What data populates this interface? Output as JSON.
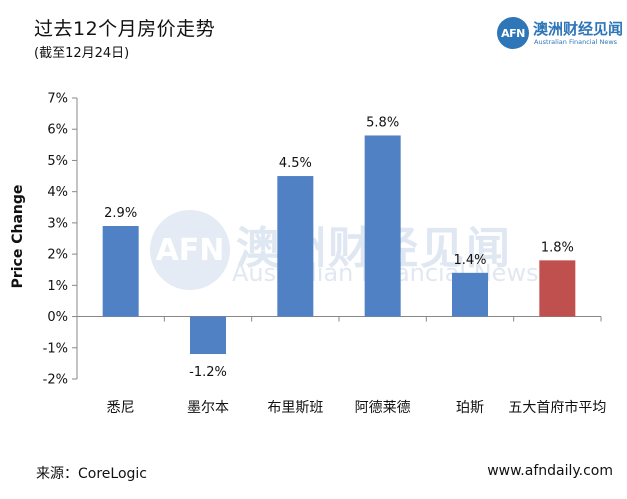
{
  "header": {
    "title": "过去12个月房价走势",
    "subtitle": "(截至12月24日)"
  },
  "logo": {
    "mark": "AFN",
    "name_cn": "澳洲财经见闻",
    "name_en": "Australian Financial News"
  },
  "watermark": {
    "mark": "AFN",
    "name_cn": "澳洲财经见闻",
    "name_en": "Australian Financial News"
  },
  "footer": {
    "source": "来源：CoreLogic",
    "website": "www.afndaily.com"
  },
  "colors": {
    "bar_default": "#4f81c4",
    "bar_highlight": "#c0504d"
  },
  "chart_data": {
    "type": "bar",
    "title": "过去12个月房价走势",
    "subtitle": "(截至12月24日)",
    "xlabel": "",
    "ylabel": "Price Change",
    "categories": [
      "悉尼",
      "墨尔本",
      "布里斯班",
      "阿德莱德",
      "珀斯",
      "五大首府市平均"
    ],
    "values": [
      2.9,
      -1.2,
      4.5,
      5.8,
      1.4,
      1.8
    ],
    "data_labels": [
      "2.9%",
      "-1.2%",
      "4.5%",
      "5.8%",
      "1.4%",
      "1.8%"
    ],
    "highlight_index": 5,
    "ylim": [
      -2,
      7
    ],
    "yticks": [
      -2,
      -1,
      0,
      1,
      2,
      3,
      4,
      5,
      6,
      7
    ],
    "ytick_labels": [
      "-2%",
      "-1%",
      "0%",
      "1%",
      "2%",
      "3%",
      "4%",
      "5%",
      "6%",
      "7%"
    ],
    "grid": false,
    "legend": "none"
  }
}
